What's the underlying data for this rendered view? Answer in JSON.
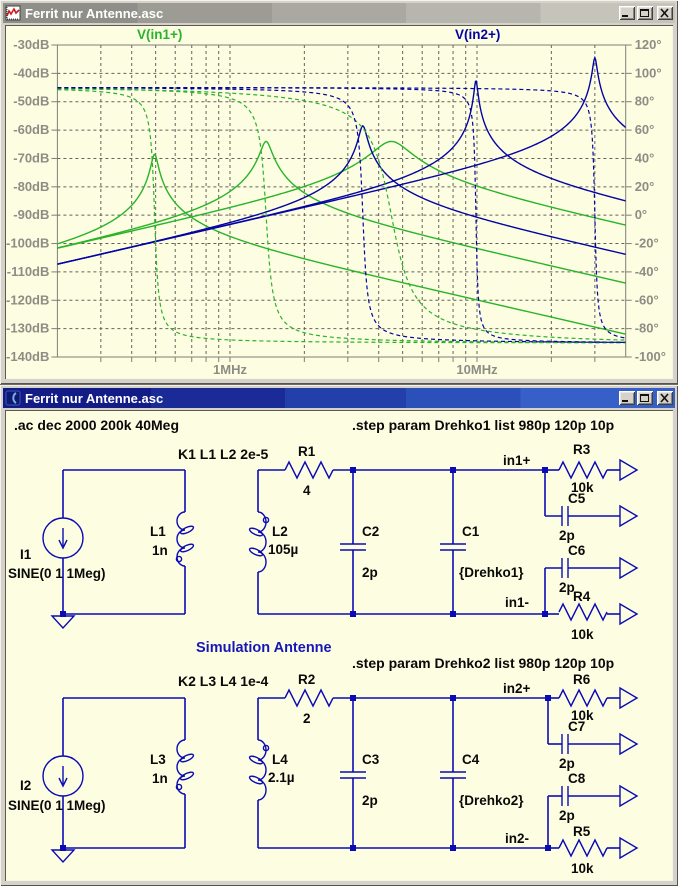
{
  "plot_window": {
    "title": "Ferrit nur Antenne.asc",
    "window_buttons": [
      "minimize",
      "maximize",
      "close"
    ]
  },
  "schematic_window": {
    "title": "Ferrit nur Antenne.asc",
    "window_buttons": [
      "minimize",
      "maximize",
      "close"
    ]
  },
  "colors": {
    "plot_background": "#fdfde2",
    "grid": "#63635b",
    "frame": "#7f7f77",
    "axis_text": "#8d8d84",
    "trace_green": "#28b428",
    "trace_blue": "#0404a4",
    "wire_blue": "#0b0bb4",
    "label_black": "#090909",
    "comment_blue": "#1717b6"
  },
  "chart_data": {
    "type": "line",
    "title": "",
    "x_axis": {
      "scale": "log",
      "unit": "MHz",
      "min_MHz": 0.2,
      "max_MHz": 40,
      "labeled_ticks": [
        {
          "text": "1MHz",
          "MHz": 1
        },
        {
          "text": "10MHz",
          "MHz": 10
        }
      ],
      "gridlines_MHz": [
        0.3,
        0.4,
        0.5,
        0.6,
        0.7,
        0.8,
        0.9,
        1,
        2,
        3,
        4,
        5,
        6,
        7,
        8,
        9,
        10,
        20,
        30
      ]
    },
    "y_axis_left": {
      "unit": "dB",
      "max": -30,
      "min": -140,
      "step": -10,
      "tick_labels": [
        "-30dB",
        "-40dB",
        "-50dB",
        "-60dB",
        "-70dB",
        "-80dB",
        "-90dB",
        "-100dB",
        "-110dB",
        "-120dB",
        "-130dB",
        "-140dB"
      ]
    },
    "y_axis_right": {
      "unit": "degrees",
      "max": 120,
      "min": -100,
      "step": -20,
      "tick_labels": [
        "120°",
        "100°",
        "80°",
        "60°",
        "40°",
        "20°",
        "0°",
        "-20°",
        "-40°",
        "-60°",
        "-80°",
        "-100°"
      ]
    },
    "legend": [
      {
        "label": "V(in1+)",
        "color": "#28b428"
      },
      {
        "label": "V(in2+)",
        "color": "#0404a4"
      }
    ],
    "curve_model": "series RLC bandpass per stepped run: mag_dB(f)=peak_dB-10*log10(1+Q^2*(f/f0-f0/f)^2); phase_deg(f)=90-atan2((f/f0)/Q,1-(f/f0)^2); solid=magnitude(left axis), dashed=phase(right axis)",
    "series": [
      {
        "name": "V(in1+) Drehko1=980p",
        "signal": "V(in1+)",
        "color": "#28b428",
        "style_mag": "solid",
        "style_phase": "dashed",
        "f0_MHz": 0.495,
        "Q": 18.4,
        "peak_dB": -68.5,
        "level_dB_at_200kHz": -100.1,
        "phase_deg_range": [
          90,
          -90
        ]
      },
      {
        "name": "V(in1+) Drehko1=120p",
        "signal": "V(in1+)",
        "color": "#28b428",
        "style_mag": "solid",
        "style_phase": "dashed",
        "f0_MHz": 1.4,
        "Q": 11.0,
        "peak_dB": -64.0,
        "level_dB_at_200kHz": -101.5,
        "phase_deg_range": [
          90,
          -90
        ]
      },
      {
        "name": "V(in1+) Drehko1=10p",
        "signal": "V(in1+)",
        "color": "#28b428",
        "style_mag": "solid",
        "style_phase": "dashed",
        "f0_MHz": 4.5,
        "Q": 3.4,
        "peak_dB": -64.0,
        "level_dB_at_200kHz": -101.7,
        "phase_deg_range": [
          90,
          -90
        ]
      },
      {
        "name": "V(in2+) Drehko2=980p",
        "signal": "V(in2+)",
        "color": "#0404a4",
        "style_mag": "solid",
        "style_phase": "dashed",
        "f0_MHz": 3.45,
        "Q": 16.0,
        "peak_dB": -58.5,
        "level_dB_at_200kHz": -107.3,
        "phase_deg_range": [
          90,
          -90
        ]
      },
      {
        "name": "V(in2+) Drehko2=120p",
        "signal": "V(in2+)",
        "color": "#0404a4",
        "style_mag": "solid",
        "style_phase": "dashed",
        "f0_MHz": 9.9,
        "Q": 35.0,
        "peak_dB": -42.5,
        "level_dB_at_200kHz": -107.3,
        "phase_deg_range": [
          90,
          -90
        ]
      },
      {
        "name": "V(in2+) Drehko2=10p",
        "signal": "V(in2+)",
        "color": "#0404a4",
        "style_mag": "solid",
        "style_phase": "dashed",
        "f0_MHz": 30.0,
        "Q": 29.0,
        "peak_dB": -34.5,
        "level_dB_at_200kHz": -107.3,
        "phase_deg_range": [
          90,
          -90
        ]
      }
    ]
  },
  "schematic": {
    "directives": [
      ".ac dec 2000 200k 40Meg",
      ".step param Drehko1 list 980p 120p 10p",
      ".step param Drehko2 list 980p 120p 10p"
    ],
    "coupling": [
      "K1 L1 L2 2e-5",
      "K2 L3 L4 1e-4"
    ],
    "comment": "Simulation Antenne",
    "net_labels": [
      "in1+",
      "in1-",
      "in2+",
      "in2-"
    ],
    "components": [
      {
        "id": "I1",
        "value": "SINE(0 1 1Meg)"
      },
      {
        "id": "L1",
        "value": "1n"
      },
      {
        "id": "L2",
        "value": "105µ"
      },
      {
        "id": "R1",
        "value": "4"
      },
      {
        "id": "C2",
        "value": "2p"
      },
      {
        "id": "C1",
        "value": "{Drehko1}"
      },
      {
        "id": "R3",
        "value": "10k"
      },
      {
        "id": "C5",
        "value": "2p"
      },
      {
        "id": "C6",
        "value": "2p"
      },
      {
        "id": "R4",
        "value": "10k"
      },
      {
        "id": "I2",
        "value": "SINE(0 1 1Meg)"
      },
      {
        "id": "L3",
        "value": "1n"
      },
      {
        "id": "L4",
        "value": "2.1µ"
      },
      {
        "id": "R2",
        "value": "2"
      },
      {
        "id": "C3",
        "value": "2p"
      },
      {
        "id": "C4",
        "value": "{Drehko2}"
      },
      {
        "id": "R6",
        "value": "10k"
      },
      {
        "id": "C7",
        "value": "2p"
      },
      {
        "id": "C8",
        "value": "2p"
      },
      {
        "id": "R5",
        "value": "10k"
      }
    ]
  }
}
